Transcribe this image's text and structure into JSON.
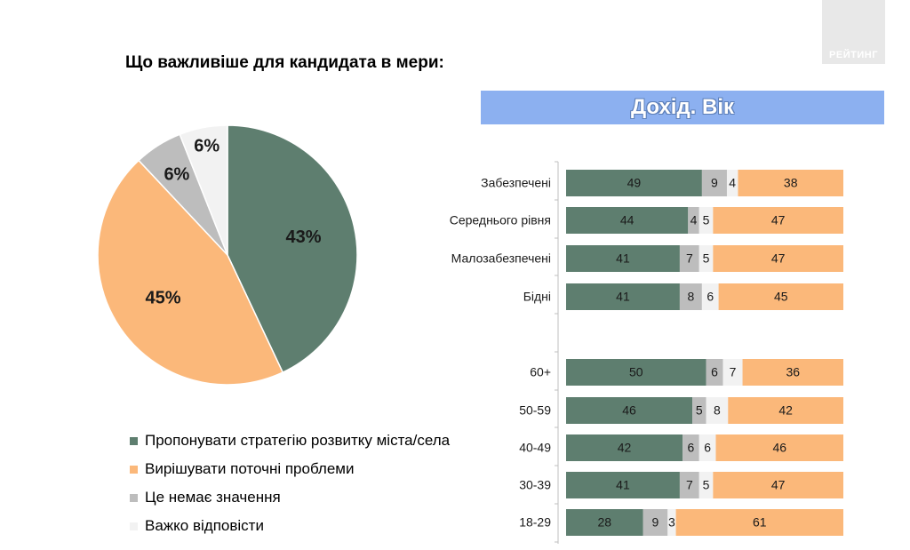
{
  "logo_text": "РЕЙТИНГ",
  "title": "Що важливіше для кандидата в мери:",
  "section_title": "Дохід. Вік",
  "colors": {
    "strategy": "#5e7e6f",
    "current": "#fbb87a",
    "no_matter": "#bdbdbd",
    "hard": "#f2f2f2",
    "banner": "#8cb0f0"
  },
  "legend": [
    {
      "label": "Пропонувати стратегію розвитку міста/села",
      "color": "#5e7e6f"
    },
    {
      "label": "Вирішувати поточні проблеми",
      "color": "#fbb87a"
    },
    {
      "label": "Це немає значення",
      "color": "#bdbdbd"
    },
    {
      "label": "Важко відповісти",
      "color": "#f2f2f2"
    }
  ],
  "chart_data": [
    {
      "type": "pie",
      "slices": [
        {
          "series": "Пропонувати стратегію розвитку міста/села",
          "value": 43,
          "label": "43%"
        },
        {
          "series": "Вирішувати поточні проблеми",
          "value": 45,
          "label": "45%"
        },
        {
          "series": "Це немає значення",
          "value": 6,
          "label": "6%"
        },
        {
          "series": "Важко відповісти",
          "value": 6,
          "label": "6%"
        }
      ]
    },
    {
      "type": "bar",
      "orientation": "horizontal",
      "stacked": true,
      "categories": [
        "Забезпечені",
        "Середнього рівня",
        "Малозабезпечені",
        "Бідні",
        "60+",
        "50-59",
        "40-49",
        "30-39",
        "18-29"
      ],
      "series": [
        {
          "name": "Пропонувати стратегію розвитку міста/села",
          "values": [
            49,
            44,
            41,
            41,
            50,
            46,
            42,
            41,
            28
          ]
        },
        {
          "name": "Це немає значення",
          "values": [
            9,
            4,
            7,
            8,
            6,
            5,
            6,
            7,
            9
          ]
        },
        {
          "name": "Важко відповісти",
          "values": [
            4,
            5,
            5,
            6,
            7,
            8,
            6,
            5,
            3
          ]
        },
        {
          "name": "Вирішувати поточні проблеми",
          "values": [
            38,
            47,
            47,
            45,
            36,
            42,
            46,
            47,
            61
          ]
        }
      ],
      "groups": [
        [
          "Забезпечені",
          "Середнього рівня",
          "Малозабезпечені",
          "Бідні"
        ],
        [
          "60+",
          "50-59",
          "40-49",
          "30-39",
          "18-29"
        ]
      ]
    }
  ]
}
